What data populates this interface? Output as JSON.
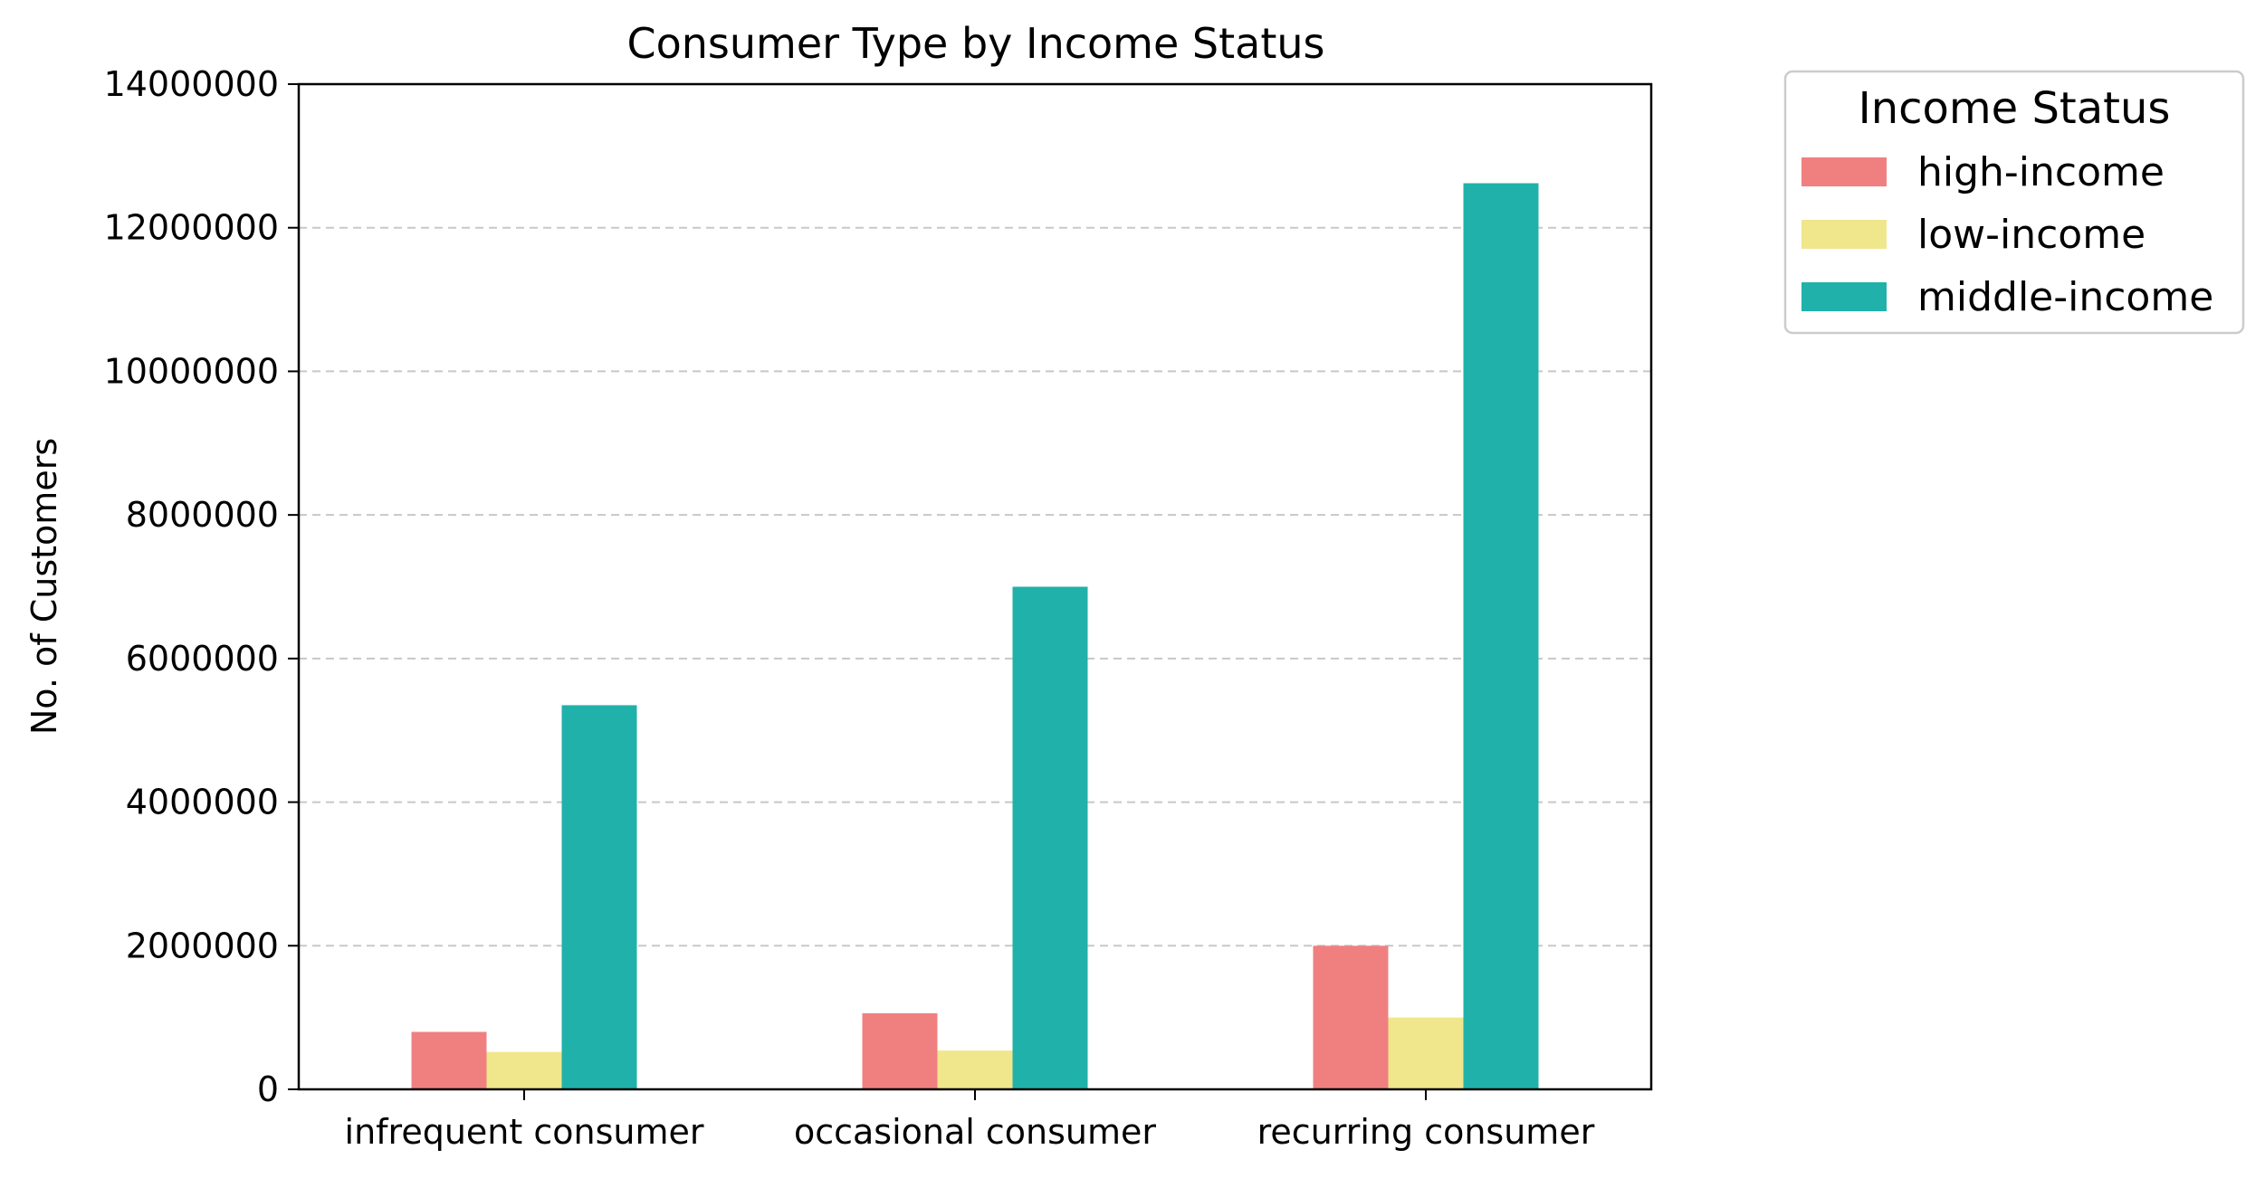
{
  "chart_data": {
    "type": "bar",
    "title": "Consumer Type by Income Status",
    "xlabel": "",
    "ylabel": "No. of Customers",
    "categories": [
      "infrequent consumer",
      "occasional consumer",
      "recurring consumer"
    ],
    "series": [
      {
        "name": "high-income",
        "color": "#f08080",
        "values": [
          800000,
          1060000,
          2000000
        ]
      },
      {
        "name": "low-income",
        "color": "#f0e68c",
        "values": [
          520000,
          540000,
          1000000
        ]
      },
      {
        "name": "middle-income",
        "color": "#20b2aa",
        "values": [
          5350000,
          7000000,
          12620000
        ]
      }
    ],
    "ylim": [
      0,
      14000000
    ],
    "yticks": [
      "0",
      "2000000",
      "4000000",
      "6000000",
      "8000000",
      "10000000",
      "12000000",
      "14000000"
    ],
    "grid": "horizontal dashed",
    "legend": {
      "title": "Income Status",
      "placement": "outside top-right"
    }
  }
}
